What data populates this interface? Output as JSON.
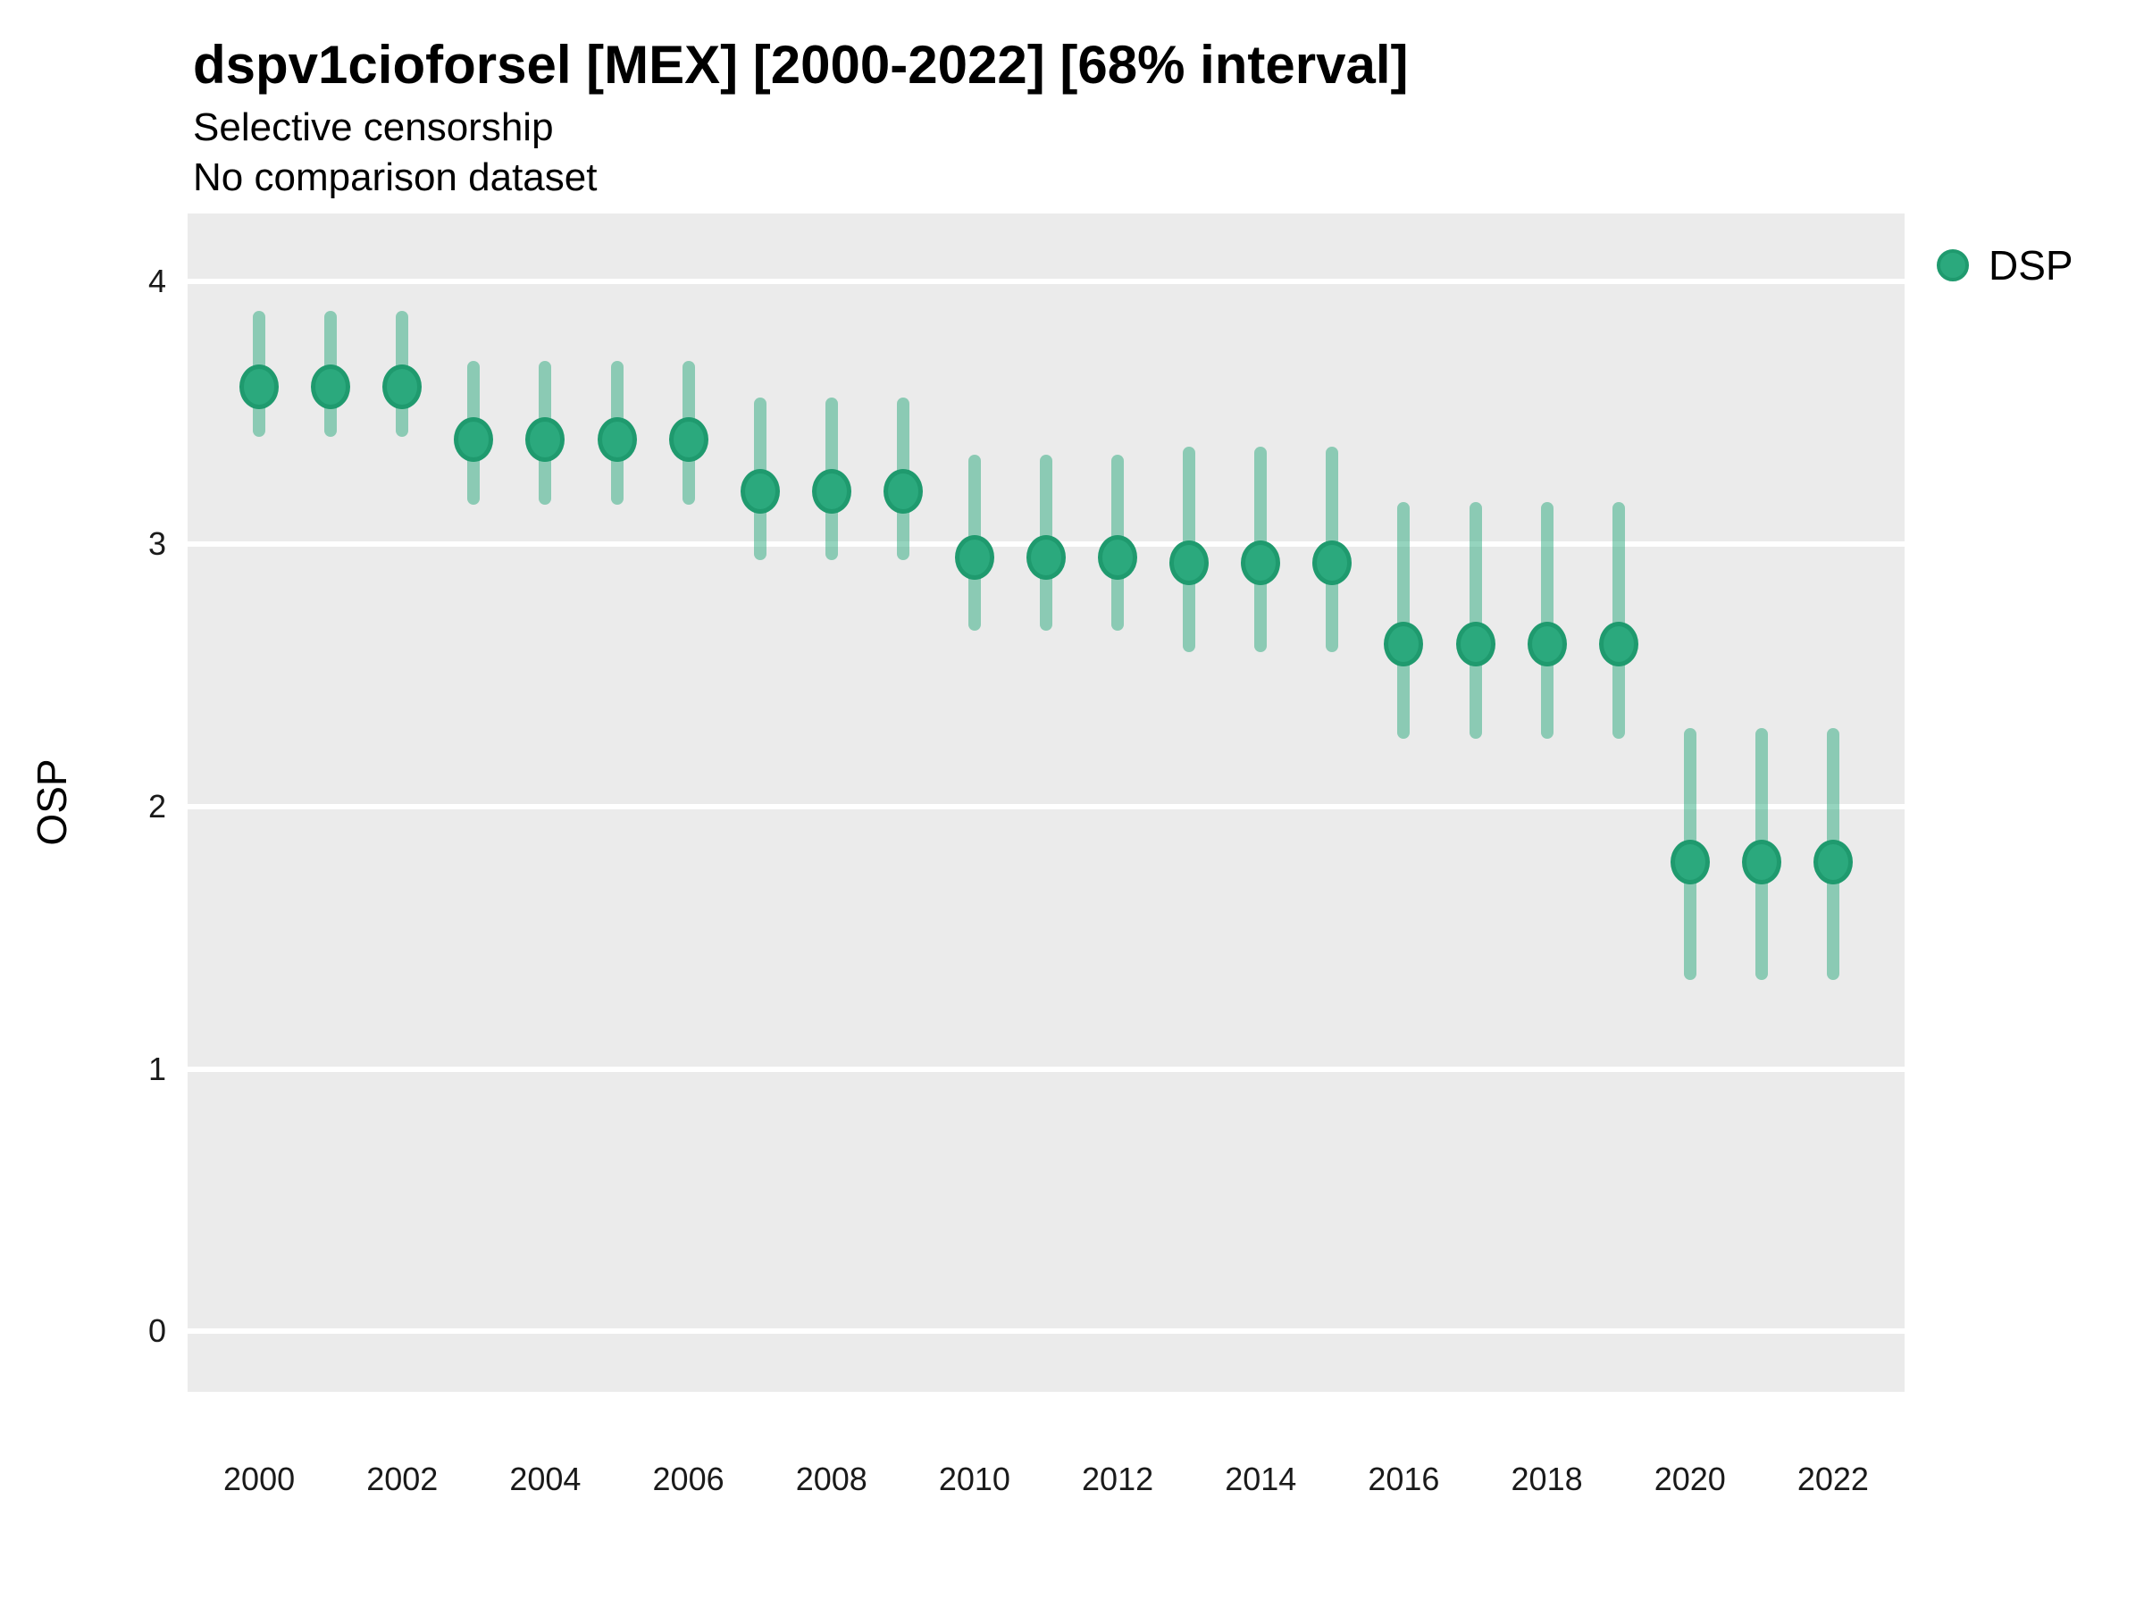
{
  "header": {
    "title": "dspv1cioforsel [MEX] [2000-2022] [68% interval]",
    "subtitle_line1": "Selective censorship",
    "subtitle_line2": "No comparison dataset"
  },
  "legend": {
    "label": "DSP",
    "position": "right-top"
  },
  "axes": {
    "y_label": "OSP",
    "y_ticks": [
      0,
      1,
      2,
      3,
      4
    ],
    "x_ticks": [
      2000,
      2002,
      2004,
      2006,
      2008,
      2010,
      2012,
      2014,
      2016,
      2018,
      2020,
      2022
    ]
  },
  "colors": {
    "point_fill": "#2BA97D",
    "point_border": "#1F9A6E",
    "interval": "rgba(43,169,125,0.5)",
    "panel_background": "#EBEBEB",
    "gridline": "#FFFFFF",
    "text": "#000000",
    "tick_text": "#1a1a1a"
  },
  "chart_data": {
    "type": "pointrange",
    "title": "dspv1cioforsel [MEX] [2000-2022] [68% interval]",
    "subtitle": "Selective censorship\nNo comparison dataset",
    "xlabel": "",
    "ylabel": "OSP",
    "xlim": [
      1999,
      2023
    ],
    "ylim": [
      -0.23,
      4.26
    ],
    "grid": "horizontal-major-only",
    "legend_position": "right-top",
    "interval_level": "68%",
    "series": [
      {
        "name": "DSP",
        "x": [
          2000,
          2001,
          2002,
          2003,
          2004,
          2005,
          2006,
          2007,
          2008,
          2009,
          2010,
          2011,
          2012,
          2013,
          2014,
          2015,
          2016,
          2017,
          2018,
          2019,
          2020,
          2021,
          2022
        ],
        "y": [
          3.6,
          3.6,
          3.6,
          3.4,
          3.4,
          3.4,
          3.4,
          3.2,
          3.2,
          3.2,
          2.95,
          2.95,
          2.95,
          2.93,
          2.93,
          2.93,
          2.62,
          2.62,
          2.62,
          2.62,
          1.79,
          1.79,
          1.79
        ],
        "lo": [
          3.41,
          3.41,
          3.41,
          3.15,
          3.15,
          3.15,
          3.15,
          2.94,
          2.94,
          2.94,
          2.67,
          2.67,
          2.67,
          2.59,
          2.59,
          2.59,
          2.26,
          2.26,
          2.26,
          2.26,
          1.34,
          1.34,
          1.34
        ],
        "hi": [
          3.89,
          3.89,
          3.89,
          3.7,
          3.7,
          3.7,
          3.7,
          3.56,
          3.56,
          3.56,
          3.34,
          3.34,
          3.34,
          3.37,
          3.37,
          3.37,
          3.16,
          3.16,
          3.16,
          3.16,
          2.3,
          2.3,
          2.3
        ]
      }
    ]
  }
}
